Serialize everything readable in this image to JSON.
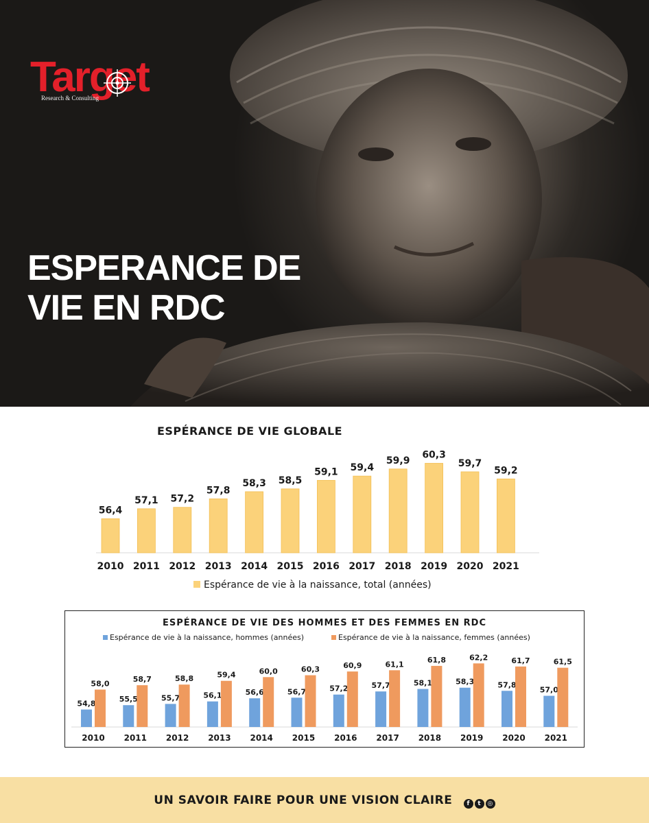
{
  "brand": {
    "logo_word": "Target",
    "logo_sub": "Research & Consulting"
  },
  "hero": {
    "title_line1": "ESPERANCE DE",
    "title_line2": "VIE EN RDC"
  },
  "colors": {
    "accent_red": "#e3202a",
    "bar_total": "#fbd27a",
    "bar_men": "#6fa3dc",
    "bar_women": "#ef9a5e",
    "footer_bg": "#f8dfa3"
  },
  "chart_data": [
    {
      "type": "bar",
      "title": "ESPÉRANCE DE VIE GLOBALE",
      "categories": [
        "2010",
        "2011",
        "2012",
        "2013",
        "2014",
        "2015",
        "2016",
        "2017",
        "2018",
        "2019",
        "2020",
        "2021"
      ],
      "series": [
        {
          "name": "Espérance de vie à la naissance, total (années)",
          "values": [
            56.4,
            57.1,
            57.2,
            57.8,
            58.3,
            58.5,
            59.1,
            59.4,
            59.9,
            60.3,
            59.7,
            59.2
          ],
          "labels": [
            "56,4",
            "57,1",
            "57,2",
            "57,8",
            "58,3",
            "58,5",
            "59,1",
            "59,4",
            "59,9",
            "60,3",
            "59,7",
            "59,2"
          ]
        }
      ],
      "legend": "bottom",
      "grid": false,
      "ylim": [
        54,
        61
      ]
    },
    {
      "type": "bar",
      "title": "ESPÉRANCE DE VIE DES HOMMES ET DES FEMMES EN RDC",
      "categories": [
        "2010",
        "2011",
        "2012",
        "2013",
        "2014",
        "2015",
        "2016",
        "2017",
        "2018",
        "2019",
        "2020",
        "2021"
      ],
      "series": [
        {
          "name": "Espérance de vie à la naissance, hommes (années)",
          "values": [
            54.8,
            55.5,
            55.7,
            56.1,
            56.6,
            56.7,
            57.2,
            57.7,
            58.1,
            58.3,
            57.8,
            57.0
          ],
          "labels": [
            "54,8",
            "55,5",
            "55,7",
            "56,1",
            "56,6",
            "56,7",
            "57,2",
            "57,7",
            "58,1",
            "58,3",
            "57,8",
            "57,0"
          ]
        },
        {
          "name": "Espérance de vie à la naissance, femmes (années)",
          "values": [
            58.0,
            58.7,
            58.8,
            59.4,
            60.0,
            60.3,
            60.9,
            61.1,
            61.8,
            62.2,
            61.7,
            61.5
          ],
          "labels": [
            "58,0",
            "58,7",
            "58,8",
            "59,4",
            "60,0",
            "60,3",
            "60,9",
            "61,1",
            "61,8",
            "62,2",
            "61,7",
            "61,5"
          ]
        }
      ],
      "legend": "top",
      "grid": false,
      "ylim": [
        52,
        63
      ]
    }
  ],
  "footer": {
    "tagline": "UN SAVOIR FAIRE POUR UNE VISION CLAIRE",
    "social_icons": [
      "facebook-icon",
      "twitter-icon",
      "instagram-icon"
    ]
  }
}
